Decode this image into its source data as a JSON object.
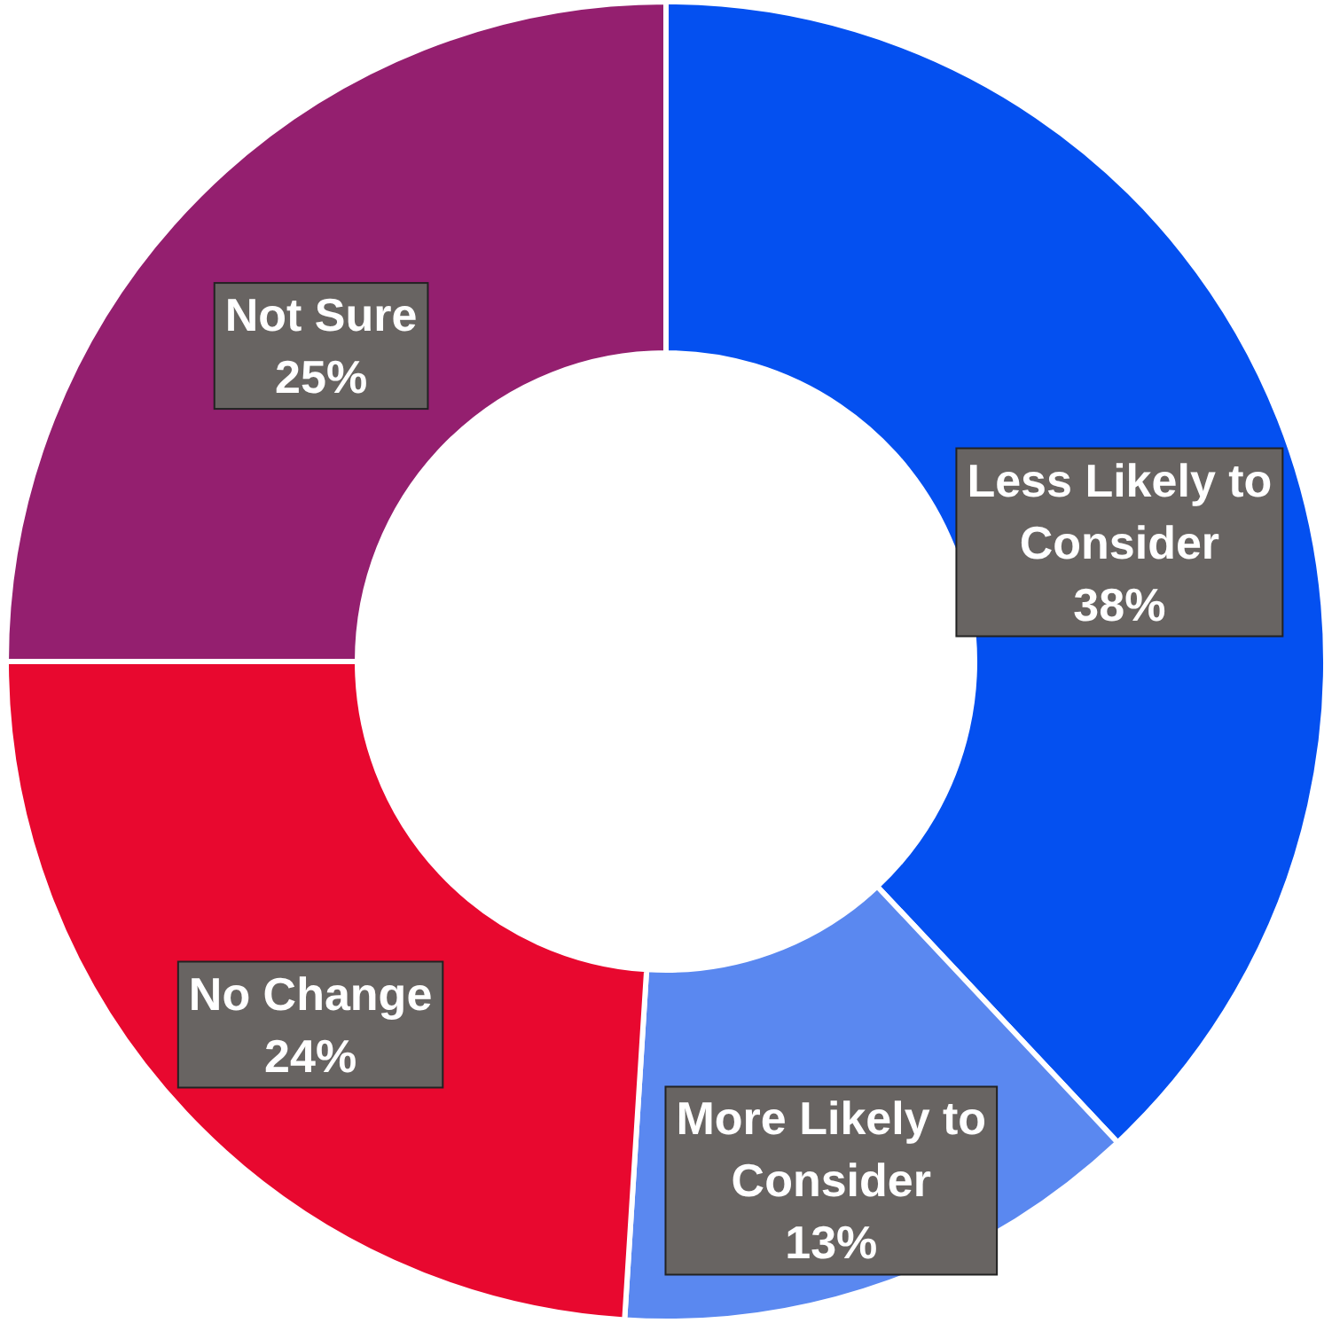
{
  "chart_data": {
    "type": "donut",
    "categories": [
      "Less Likely to Consider",
      "More Likely to Consider",
      "No Change",
      "Not Sure"
    ],
    "values": [
      38,
      13,
      24,
      25
    ],
    "colors": [
      "#0450f0",
      "#5a88f0",
      "#e8082f",
      "#941f6f"
    ],
    "value_labels": [
      "38%",
      "13%",
      "24%",
      "25%"
    ]
  }
}
